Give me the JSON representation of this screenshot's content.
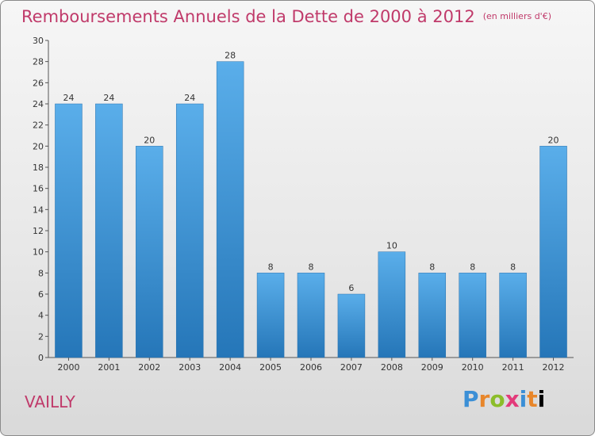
{
  "page": {
    "title": "Remboursements Annuels de la Dette de 2000 à 2012",
    "unit": "(en milliers d'€)",
    "commune": "VAILLY",
    "logo": "Proxiti"
  },
  "chart_data": {
    "type": "bar",
    "title": "Remboursements Annuels de la Dette de 2000 à 2012",
    "subtitle": "(en milliers d'€)",
    "xlabel": "",
    "ylabel": "",
    "categories": [
      "2000",
      "2001",
      "2002",
      "2003",
      "2004",
      "2005",
      "2006",
      "2007",
      "2008",
      "2009",
      "2010",
      "2011",
      "2012"
    ],
    "values": [
      24,
      24,
      20,
      24,
      28,
      8,
      8,
      6,
      10,
      8,
      8,
      8,
      20
    ],
    "ylim": [
      0,
      30
    ],
    "yticks": [
      0,
      2,
      4,
      6,
      8,
      10,
      12,
      14,
      16,
      18,
      20,
      22,
      24,
      26,
      28,
      30
    ],
    "grid": false,
    "bar_color": "#3d9be0",
    "bar_color_dark": "#2878b8"
  }
}
